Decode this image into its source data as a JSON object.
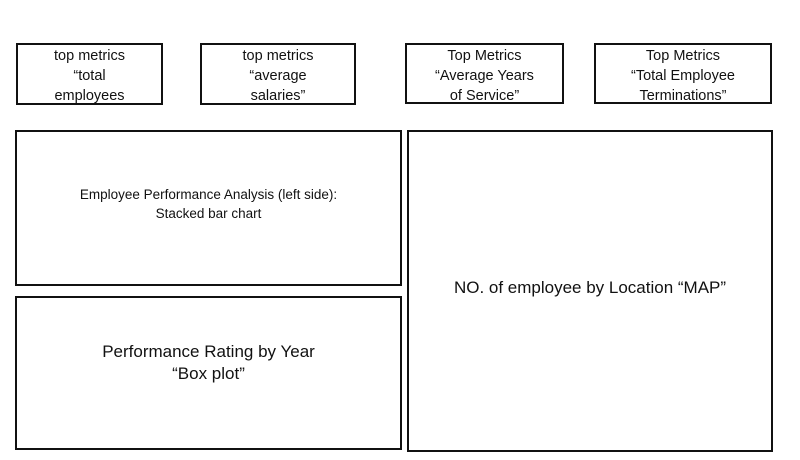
{
  "metrics": [
    {
      "lines": [
        "top metrics",
        "“total",
        "employees"
      ]
    },
    {
      "lines": [
        "top metrics",
        "“average",
        "salaries”"
      ]
    },
    {
      "lines": [
        "Top Metrics",
        "“Average Years",
        "of Service”"
      ]
    },
    {
      "lines": [
        "Top Metrics",
        "“Total Employee",
        "Terminations”"
      ]
    }
  ],
  "panels": {
    "performance_analysis": {
      "lines": [
        "Employee Performance Analysis (left side):",
        "Stacked bar chart"
      ]
    },
    "rating_by_year": {
      "lines": [
        "Performance Rating by Year",
        "“Box plot”"
      ]
    },
    "location_map": {
      "lines": [
        "NO. of employee by Location “MAP”"
      ]
    }
  }
}
